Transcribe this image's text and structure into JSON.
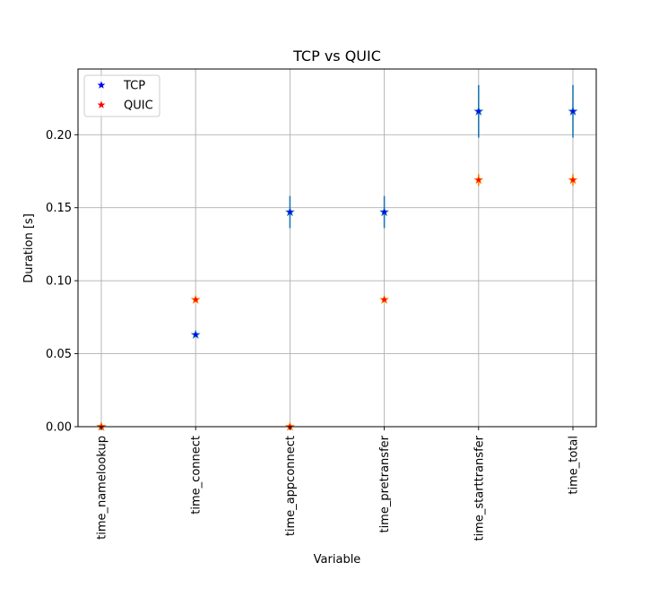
{
  "chart_data": {
    "type": "scatter",
    "title": "TCP vs QUIC",
    "xlabel": "Variable",
    "ylabel": "Duration [s]",
    "categories": [
      "time_namelookup",
      "time_connect",
      "time_appconnect",
      "time_pretransfer",
      "time_starttransfer",
      "time_total"
    ],
    "ylim": [
      0,
      0.245
    ],
    "yticks": [
      "0.00",
      "0.05",
      "0.10",
      "0.15",
      "0.20"
    ],
    "grid": true,
    "legend_position": "top-left",
    "series": [
      {
        "name": "TCP",
        "marker": "star",
        "marker_color": "#0000ff",
        "errorbar_color": "#1f77b4",
        "values": [
          0.0,
          0.063,
          0.147,
          0.147,
          0.216,
          0.216
        ],
        "errors": [
          0.0,
          0.0,
          0.011,
          0.011,
          0.018,
          0.018
        ]
      },
      {
        "name": "QUIC",
        "marker": "star",
        "marker_color": "#ff0000",
        "errorbar_color": "#ff7f0e",
        "values": [
          0.0,
          0.087,
          0.0,
          0.087,
          0.169,
          0.169
        ],
        "errors": [
          0.0,
          0.0,
          0.0,
          0.0,
          0.004,
          0.004
        ]
      }
    ]
  }
}
